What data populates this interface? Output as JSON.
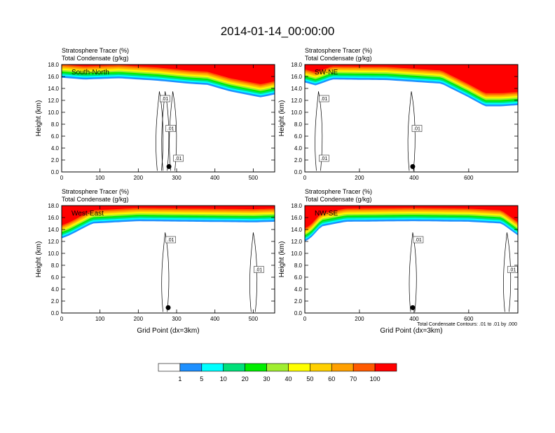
{
  "main_title": "2014-01-14_00:00:00",
  "footnote": "Total Condensate Contours: .01 to .01 by .000",
  "chart_data": [
    {
      "type": "heatmap",
      "name": "South-North",
      "title_lines": [
        "Stratosphere Tracer   (%)",
        "Total Condensate   (g/kg)"
      ],
      "ylabel": "Height (km)",
      "xlabel": "",
      "xlim": [
        0,
        556
      ],
      "ylim": [
        0,
        18
      ],
      "xticks": [
        "0",
        "100",
        "200",
        "300",
        "400",
        "500"
      ],
      "yticks": [
        "0.0",
        "2.0",
        "4.0",
        "6.0",
        "8.0",
        "10.0",
        "12.0",
        "14.0",
        "16.0",
        "18.0"
      ],
      "contour_labels": [
        ".01",
        ".01",
        ".01"
      ],
      "tracer_profile": {
        "x": [
          0,
          60,
          150,
          250,
          330,
          380,
          440,
          520,
          556
        ],
        "bottom_km": [
          15.8,
          15.5,
          15.7,
          15.3,
          14.8,
          14.6,
          13.5,
          12.5,
          13.0
        ]
      },
      "cloud_columns_x": [
        255,
        270,
        290
      ],
      "surface_marker_x": 280
    },
    {
      "type": "heatmap",
      "name": "SW-NE",
      "title_lines": [
        "Stratosphere Tracer   (%)",
        "Total Condensate   (g/kg)"
      ],
      "ylabel": "Height (km)",
      "xlabel": "",
      "xlim": [
        0,
        780
      ],
      "ylim": [
        0,
        18
      ],
      "xticks": [
        "0",
        "200",
        "400",
        "600"
      ],
      "yticks": [
        "0.0",
        "2.0",
        "4.0",
        "6.0",
        "8.0",
        "10.0",
        "12.0",
        "14.0",
        "16.0",
        "18.0"
      ],
      "contour_labels": [
        ".01",
        ".01",
        ".01"
      ],
      "tracer_profile": {
        "x": [
          0,
          40,
          100,
          300,
          500,
          600,
          660,
          720,
          780
        ],
        "bottom_km": [
          15.0,
          14.5,
          15.5,
          15.4,
          14.8,
          12.5,
          11.0,
          11.0,
          11.2
        ]
      },
      "cloud_columns_x": [
        50,
        390
      ],
      "surface_marker_x": 395
    },
    {
      "type": "heatmap",
      "name": "West-East",
      "title_lines": [
        "Stratosphere Tracer   (%)",
        "Total Condensate   (g/kg)"
      ],
      "ylabel": "Height (km)",
      "xlabel": "Grid Point (dx=3km)",
      "xlim": [
        0,
        556
      ],
      "ylim": [
        0,
        18
      ],
      "xticks": [
        "0",
        "100",
        "200",
        "300",
        "400",
        "500"
      ],
      "yticks": [
        "0.0",
        "2.0",
        "4.0",
        "6.0",
        "8.0",
        "10.0",
        "12.0",
        "14.0",
        "16.0",
        "18.0"
      ],
      "contour_labels": [
        ".01",
        ".01"
      ],
      "tracer_profile": {
        "x": [
          0,
          20,
          80,
          200,
          350,
          500,
          556
        ],
        "bottom_km": [
          12.5,
          13.0,
          15.0,
          15.4,
          15.3,
          15.2,
          15.3
        ]
      },
      "cloud_columns_x": [
        270,
        500
      ],
      "surface_marker_x": 278
    },
    {
      "type": "heatmap",
      "name": "NW-SE",
      "title_lines": [
        "Stratosphere Tracer   (%)",
        "Total Condensate   (g/kg)"
      ],
      "ylabel": "Height (km)",
      "xlabel": "Grid Point (dx=3km)",
      "xlim": [
        0,
        780
      ],
      "ylim": [
        0,
        18
      ],
      "xticks": [
        "0",
        "200",
        "400",
        "600"
      ],
      "yticks": [
        "0.0",
        "2.0",
        "4.0",
        "6.0",
        "8.0",
        "10.0",
        "12.0",
        "14.0",
        "16.0",
        "18.0"
      ],
      "contour_labels": [
        ".01",
        ".01"
      ],
      "tracer_profile": {
        "x": [
          0,
          20,
          60,
          150,
          400,
          600,
          720,
          780
        ],
        "bottom_km": [
          12.0,
          12.5,
          14.5,
          15.3,
          15.4,
          15.3,
          15.0,
          13.0
        ]
      },
      "cloud_columns_x": [
        395,
        740
      ],
      "surface_marker_x": 395
    }
  ],
  "colorbar": {
    "labels": [
      "1",
      "5",
      "10",
      "20",
      "30",
      "40",
      "50",
      "60",
      "70",
      "100"
    ],
    "colors": [
      "#ffffff",
      "#1e90ff",
      "#00ffff",
      "#00e07a",
      "#00ee00",
      "#a0ee30",
      "#ffff00",
      "#ffd000",
      "#ffa000",
      "#ff5a00",
      "#ff0000"
    ]
  }
}
